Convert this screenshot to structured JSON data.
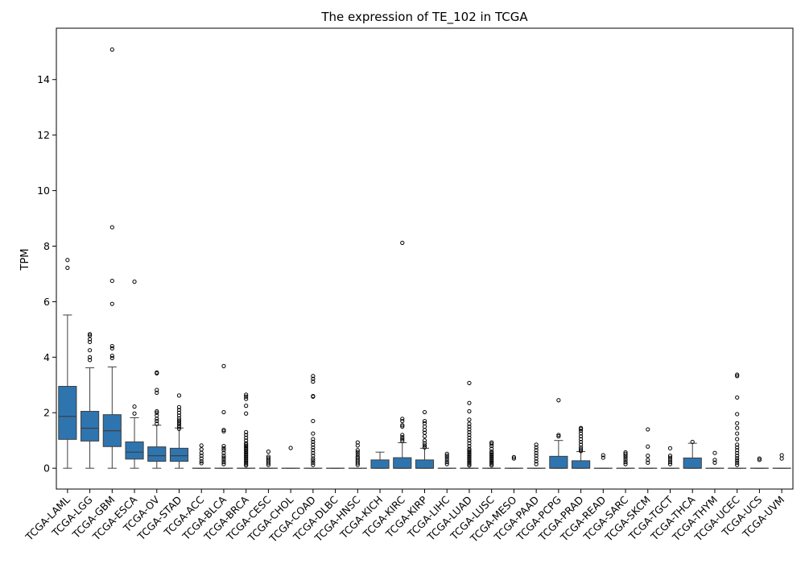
{
  "chart_data": {
    "type": "box",
    "title": "The expression of TE_102 in TCGA",
    "xlabel": "",
    "ylabel": "TPM",
    "ylim": [
      -0.75,
      15.85
    ],
    "yticks": [
      0,
      2,
      4,
      6,
      8,
      10,
      12,
      14
    ],
    "grid": false,
    "box_color": "#2e75b0",
    "categories": [
      "TCGA-LAML",
      "TCGA-LGG",
      "TCGA-GBM",
      "TCGA-ESCA",
      "TCGA-OV",
      "TCGA-STAD",
      "TCGA-ACC",
      "TCGA-BLCA",
      "TCGA-BRCA",
      "TCGA-CESC",
      "TCGA-CHOL",
      "TCGA-COAD",
      "TCGA-DLBC",
      "TCGA-HNSC",
      "TCGA-KICH",
      "TCGA-KIRC",
      "TCGA-KIRP",
      "TCGA-LIHC",
      "TCGA-LUAD",
      "TCGA-LUSC",
      "TCGA-MESO",
      "TCGA-PAAD",
      "TCGA-PCPG",
      "TCGA-PRAD",
      "TCGA-READ",
      "TCGA-SARC",
      "TCGA-SKCM",
      "TCGA-TGCT",
      "TCGA-THCA",
      "TCGA-THYM",
      "TCGA-UCEC",
      "TCGA-UCS",
      "TCGA-UVM"
    ],
    "boxes": [
      {
        "q1": 1.04,
        "median": 1.87,
        "q3": 2.95,
        "whislo": 0,
        "whishi": 5.52,
        "fliers": [
          7.22,
          7.5
        ]
      },
      {
        "q1": 0.98,
        "median": 1.44,
        "q3": 2.05,
        "whislo": 0,
        "whishi": 3.62,
        "fliers": [
          3.9,
          4.0,
          4.25,
          4.55,
          4.65,
          4.78,
          4.83
        ]
      },
      {
        "q1": 0.78,
        "median": 1.35,
        "q3": 1.93,
        "whislo": 0,
        "whishi": 3.65,
        "fliers": [
          3.97,
          4.05,
          4.32,
          4.4,
          5.92,
          6.75,
          8.68,
          15.08
        ]
      },
      {
        "q1": 0.33,
        "median": 0.58,
        "q3": 0.95,
        "whislo": 0,
        "whishi": 1.82,
        "fliers": [
          1.97,
          2.22,
          6.72
        ]
      },
      {
        "q1": 0.25,
        "median": 0.45,
        "q3": 0.77,
        "whislo": 0,
        "whishi": 1.55,
        "fliers": [
          1.6,
          1.7,
          1.78,
          1.9,
          2.0,
          2.05,
          2.72,
          2.82,
          3.42,
          3.45
        ]
      },
      {
        "q1": 0.25,
        "median": 0.45,
        "q3": 0.72,
        "whislo": 0,
        "whishi": 1.45,
        "fliers": [
          1.42,
          1.5,
          1.58,
          1.65,
          1.72,
          1.8,
          1.9,
          2.0,
          2.1,
          2.2,
          2.62
        ]
      },
      {
        "q1": 0,
        "median": 0,
        "q3": 0,
        "whislo": 0,
        "whishi": 0,
        "fliers": [
          0.18,
          0.25,
          0.35,
          0.45,
          0.55,
          0.68,
          0.82
        ]
      },
      {
        "q1": 0,
        "median": 0,
        "q3": 0,
        "whislo": 0,
        "whishi": 0,
        "fliers": [
          0.15,
          0.22,
          0.3,
          0.38,
          0.45,
          0.55,
          0.65,
          0.72,
          0.8,
          1.33,
          1.38,
          2.02,
          3.68
        ]
      },
      {
        "q1": 0,
        "median": 0,
        "q3": 0,
        "whislo": 0,
        "whishi": 0,
        "fliers": [
          0.1,
          0.15,
          0.2,
          0.25,
          0.3,
          0.35,
          0.4,
          0.45,
          0.5,
          0.55,
          0.6,
          0.65,
          0.7,
          0.75,
          0.8,
          0.85,
          0.9,
          1.0,
          1.1,
          1.2,
          1.3,
          1.97,
          2.25,
          2.5,
          2.58,
          2.65
        ]
      },
      {
        "q1": 0,
        "median": 0,
        "q3": 0,
        "whislo": 0,
        "whishi": 0,
        "fliers": [
          0.12,
          0.18,
          0.24,
          0.3,
          0.36,
          0.42,
          0.6
        ]
      },
      {
        "q1": 0,
        "median": 0,
        "q3": 0,
        "whislo": 0,
        "whishi": 0,
        "fliers": [
          0.73
        ]
      },
      {
        "q1": 0,
        "median": 0,
        "q3": 0,
        "whislo": 0,
        "whishi": 0,
        "fliers": [
          0.12,
          0.2,
          0.28,
          0.35,
          0.45,
          0.55,
          0.65,
          0.75,
          0.85,
          0.95,
          1.05,
          1.25,
          1.7,
          2.58,
          2.6,
          3.12,
          3.22,
          3.32
        ]
      },
      {
        "q1": 0,
        "median": 0,
        "q3": 0,
        "whislo": 0,
        "whishi": 0,
        "fliers": []
      },
      {
        "q1": 0,
        "median": 0,
        "q3": 0,
        "whislo": 0,
        "whishi": 0,
        "fliers": [
          0.12,
          0.18,
          0.24,
          0.3,
          0.36,
          0.42,
          0.5,
          0.58,
          0.65,
          0.82,
          0.93
        ]
      },
      {
        "q1": 0,
        "median": 0,
        "q3": 0.3,
        "whislo": 0,
        "whishi": 0.58,
        "fliers": []
      },
      {
        "q1": 0,
        "median": 0,
        "q3": 0.38,
        "whislo": 0,
        "whishi": 0.92,
        "fliers": [
          0.98,
          1.05,
          1.12,
          1.2,
          1.5,
          1.55,
          1.7,
          1.78,
          8.12
        ]
      },
      {
        "q1": 0,
        "median": 0,
        "q3": 0.3,
        "whislo": 0,
        "whishi": 0.72,
        "fliers": [
          0.75,
          0.82,
          0.9,
          1.0,
          1.15,
          1.28,
          1.38,
          1.5,
          1.62,
          1.7,
          2.02
        ]
      },
      {
        "q1": 0,
        "median": 0,
        "q3": 0,
        "whislo": 0,
        "whishi": 0,
        "fliers": [
          0.15,
          0.22,
          0.3,
          0.38,
          0.45,
          0.52
        ]
      },
      {
        "q1": 0,
        "median": 0,
        "q3": 0,
        "whislo": 0,
        "whishi": 0,
        "fliers": [
          0.1,
          0.15,
          0.2,
          0.25,
          0.3,
          0.35,
          0.4,
          0.45,
          0.5,
          0.55,
          0.6,
          0.65,
          0.7,
          0.8,
          0.9,
          1.0,
          1.1,
          1.2,
          1.3,
          1.4,
          1.5,
          1.6,
          1.75,
          2.05,
          2.35,
          3.07
        ]
      },
      {
        "q1": 0,
        "median": 0,
        "q3": 0,
        "whislo": 0,
        "whishi": 0,
        "fliers": [
          0.1,
          0.15,
          0.2,
          0.25,
          0.3,
          0.35,
          0.4,
          0.45,
          0.5,
          0.55,
          0.6,
          0.7,
          0.8,
          0.88,
          0.93
        ]
      },
      {
        "q1": 0,
        "median": 0,
        "q3": 0,
        "whislo": 0,
        "whishi": 0,
        "fliers": [
          0.35,
          0.4
        ]
      },
      {
        "q1": 0,
        "median": 0,
        "q3": 0,
        "whislo": 0,
        "whishi": 0,
        "fliers": [
          0.15,
          0.25,
          0.35,
          0.45,
          0.55,
          0.65,
          0.75,
          0.85
        ]
      },
      {
        "q1": 0,
        "median": 0,
        "q3": 0.43,
        "whislo": 0,
        "whishi": 1.0,
        "fliers": [
          1.15,
          1.2,
          2.45
        ]
      },
      {
        "q1": 0,
        "median": 0,
        "q3": 0.27,
        "whislo": 0,
        "whishi": 0.6,
        "fliers": [
          0.62,
          0.68,
          0.75,
          0.85,
          0.95,
          1.05,
          1.15,
          1.25,
          1.35,
          1.42,
          1.45
        ]
      },
      {
        "q1": 0,
        "median": 0,
        "q3": 0,
        "whislo": 0,
        "whishi": 0,
        "fliers": [
          0.38,
          0.47
        ]
      },
      {
        "q1": 0,
        "median": 0,
        "q3": 0,
        "whislo": 0,
        "whishi": 0,
        "fliers": [
          0.15,
          0.22,
          0.3,
          0.38,
          0.45,
          0.52,
          0.57
        ]
      },
      {
        "q1": 0,
        "median": 0,
        "q3": 0,
        "whislo": 0,
        "whishi": 0,
        "fliers": [
          0.2,
          0.3,
          0.45,
          0.78,
          1.4
        ]
      },
      {
        "q1": 0,
        "median": 0,
        "q3": 0,
        "whislo": 0,
        "whishi": 0,
        "fliers": [
          0.15,
          0.22,
          0.3,
          0.38,
          0.45,
          0.72
        ]
      },
      {
        "q1": 0,
        "median": 0,
        "q3": 0.37,
        "whislo": 0,
        "whishi": 0.9,
        "fliers": [
          0.95
        ]
      },
      {
        "q1": 0,
        "median": 0,
        "q3": 0,
        "whislo": 0,
        "whishi": 0,
        "fliers": [
          0.2,
          0.3,
          0.55
        ]
      },
      {
        "q1": 0,
        "median": 0,
        "q3": 0,
        "whislo": 0,
        "whishi": 0,
        "fliers": [
          0.12,
          0.2,
          0.28,
          0.36,
          0.45,
          0.55,
          0.65,
          0.75,
          0.85,
          1.05,
          1.25,
          1.45,
          1.62,
          1.95,
          2.55,
          3.32,
          3.37
        ]
      },
      {
        "q1": 0,
        "median": 0,
        "q3": 0,
        "whislo": 0,
        "whishi": 0,
        "fliers": [
          0.3,
          0.35
        ]
      },
      {
        "q1": 0,
        "median": 0,
        "q3": 0,
        "whislo": 0,
        "whishi": 0,
        "fliers": [
          0.35,
          0.47
        ]
      }
    ]
  }
}
